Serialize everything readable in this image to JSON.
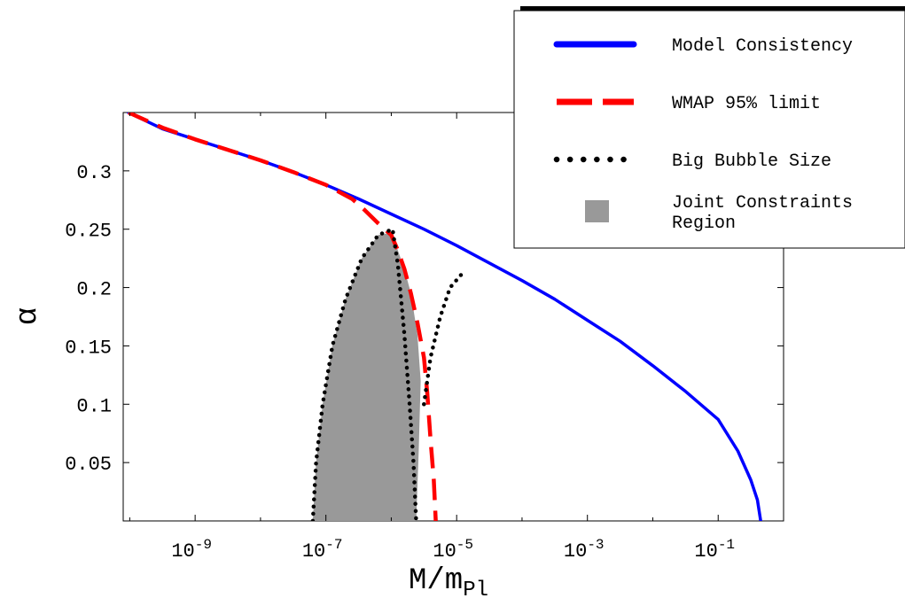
{
  "chart_data": {
    "type": "line",
    "xlabel": {
      "base": "M/m",
      "sub": "Pl"
    },
    "ylabel": "α",
    "x_scale": "log",
    "x_ticks": [
      {
        "exp": -9,
        "base": "10",
        "sup": "-9"
      },
      {
        "exp": -7,
        "base": "10",
        "sup": "-7"
      },
      {
        "exp": -5,
        "base": "10",
        "sup": "-5"
      },
      {
        "exp": -3,
        "base": "10",
        "sup": "-3"
      },
      {
        "exp": -1,
        "base": "10",
        "sup": "-1"
      }
    ],
    "y_ticks": [
      {
        "value": 0.05,
        "label": "0.05"
      },
      {
        "value": 0.1,
        "label": "0.1"
      },
      {
        "value": 0.15,
        "label": "0.15"
      },
      {
        "value": 0.2,
        "label": "0.2"
      },
      {
        "value": 0.25,
        "label": "0.25"
      },
      {
        "value": 0.3,
        "label": "0.3"
      }
    ],
    "xlim_log10": [
      -10.1,
      0.0
    ],
    "ylim": [
      0,
      0.35
    ],
    "grid": false,
    "legend_placement": "top-right",
    "series": [
      {
        "name": "Model Consistency",
        "color": "#0000ff",
        "style": "solid",
        "points_log10x": [
          [
            -10.02,
            0.35
          ],
          [
            -9.5,
            0.336
          ],
          [
            -9.0,
            0.327
          ],
          [
            -8.5,
            0.318
          ],
          [
            -8.0,
            0.309
          ],
          [
            -7.5,
            0.299
          ],
          [
            -7.0,
            0.288
          ],
          [
            -6.5,
            0.276
          ],
          [
            -6.0,
            0.263
          ],
          [
            -5.5,
            0.25
          ],
          [
            -5.0,
            0.236
          ],
          [
            -4.5,
            0.221
          ],
          [
            -4.0,
            0.206
          ],
          [
            -3.5,
            0.19
          ],
          [
            -3.0,
            0.172
          ],
          [
            -2.5,
            0.154
          ],
          [
            -2.0,
            0.133
          ],
          [
            -1.5,
            0.111
          ],
          [
            -1.0,
            0.087
          ],
          [
            -0.7,
            0.06
          ],
          [
            -0.5,
            0.035
          ],
          [
            -0.4,
            0.018
          ],
          [
            -0.35,
            0.0
          ]
        ]
      },
      {
        "name": "WMAP 95% limit",
        "color": "#ff0000",
        "style": "dashed",
        "points_log10x": [
          [
            -10.02,
            0.35
          ],
          [
            -9.5,
            0.337
          ],
          [
            -9.0,
            0.327
          ],
          [
            -8.5,
            0.318
          ],
          [
            -8.0,
            0.309
          ],
          [
            -7.5,
            0.299
          ],
          [
            -7.0,
            0.288
          ],
          [
            -6.6,
            0.276
          ],
          [
            -6.4,
            0.266
          ],
          [
            -6.2,
            0.255
          ],
          [
            -6.0,
            0.245
          ],
          [
            -5.9,
            0.232
          ],
          [
            -5.8,
            0.216
          ],
          [
            -5.7,
            0.195
          ],
          [
            -5.6,
            0.17
          ],
          [
            -5.5,
            0.14
          ],
          [
            -5.45,
            0.11
          ],
          [
            -5.4,
            0.07
          ],
          [
            -5.35,
            0.035
          ],
          [
            -5.32,
            0.0
          ]
        ]
      },
      {
        "name": "Big Bubble Size",
        "color": "#000000",
        "style": "dotted",
        "curves_log10x": [
          [
            [
              -7.2,
              0.0
            ],
            [
              -7.15,
              0.05
            ],
            [
              -7.05,
              0.1
            ],
            [
              -6.9,
              0.15
            ],
            [
              -6.7,
              0.19
            ],
            [
              -6.45,
              0.225
            ],
            [
              -6.2,
              0.245
            ],
            [
              -5.98,
              0.25
            ],
            [
              -5.9,
              0.22
            ],
            [
              -5.8,
              0.16
            ],
            [
              -5.72,
              0.1
            ],
            [
              -5.66,
              0.05
            ],
            [
              -5.62,
              0.0
            ]
          ],
          [
            [
              -5.5,
              0.1
            ],
            [
              -5.4,
              0.14
            ],
            [
              -5.25,
              0.175
            ],
            [
              -5.1,
              0.2
            ],
            [
              -4.9,
              0.213
            ]
          ]
        ]
      }
    ],
    "shaded_regions": [
      {
        "name": "Joint Constraints Region",
        "color": "#999999",
        "polygon_log10x": [
          [
            -7.2,
            0.0
          ],
          [
            -7.15,
            0.05
          ],
          [
            -7.05,
            0.1
          ],
          [
            -6.9,
            0.15
          ],
          [
            -6.7,
            0.19
          ],
          [
            -6.45,
            0.225
          ],
          [
            -6.2,
            0.245
          ],
          [
            -6.0,
            0.247
          ],
          [
            -5.9,
            0.232
          ],
          [
            -5.8,
            0.216
          ],
          [
            -5.7,
            0.195
          ],
          [
            -5.6,
            0.16
          ],
          [
            -5.55,
            0.12
          ],
          [
            -5.58,
            0.06
          ],
          [
            -5.62,
            0.0
          ]
        ]
      }
    ],
    "legend": [
      {
        "label": "Model Consistency",
        "kind": "line",
        "color": "#0000ff",
        "style": "solid"
      },
      {
        "label": "WMAP 95% limit",
        "kind": "line",
        "color": "#ff0000",
        "style": "dashed"
      },
      {
        "label": "Big Bubble Size",
        "kind": "line",
        "color": "#000000",
        "style": "dotted"
      },
      {
        "label": "Joint Constraints",
        "label2": "Region",
        "kind": "patch",
        "color": "#999999"
      }
    ]
  }
}
